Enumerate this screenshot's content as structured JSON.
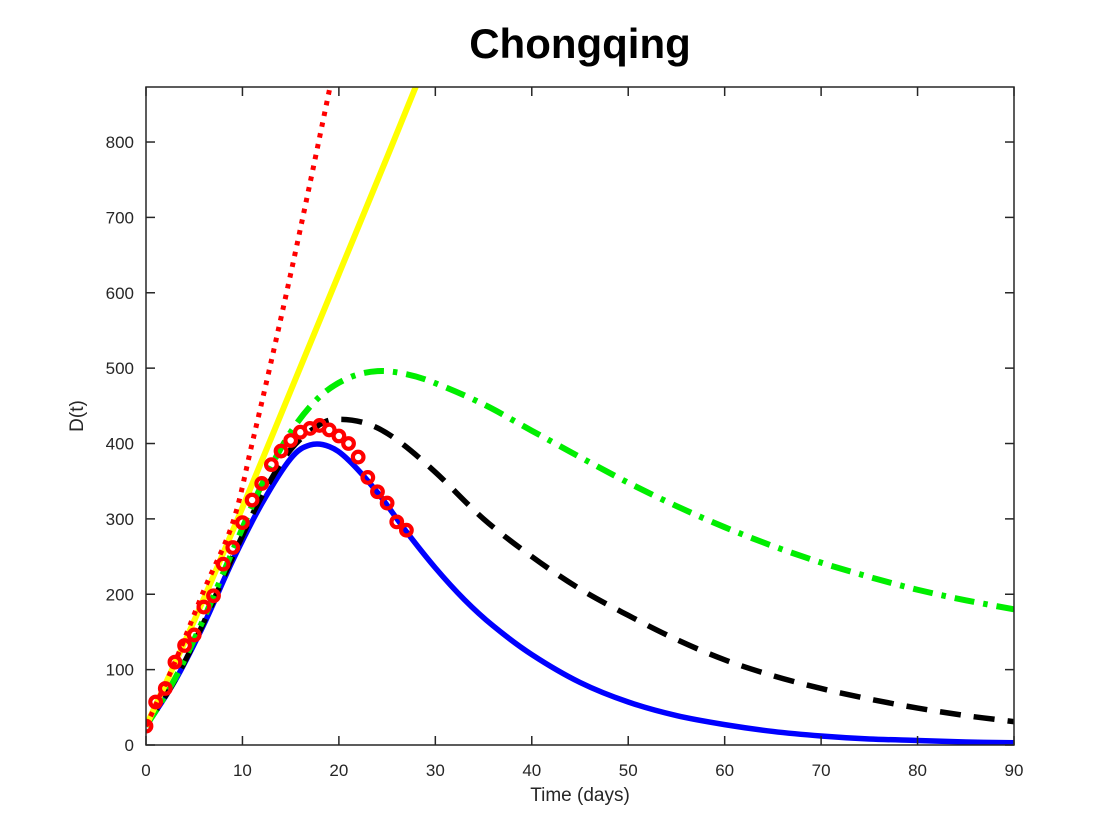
{
  "chart_data": {
    "type": "line",
    "title": "Chongqing",
    "xlabel": "Time (days)",
    "ylabel": "D(t)",
    "xlim": [
      0,
      90
    ],
    "ylim": [
      0,
      873
    ],
    "xticks": [
      0,
      10,
      20,
      30,
      40,
      50,
      60,
      70,
      80,
      90
    ],
    "yticks": [
      0,
      100,
      200,
      300,
      400,
      500,
      600,
      700,
      800
    ],
    "grid": false,
    "legend": "none",
    "background": "#ffffff",
    "axis_color": "#262626",
    "series": [
      {
        "name": "model-blue-solid",
        "type": "line",
        "style": "solid",
        "color": "#0000ff",
        "width": 5.5,
        "x": [
          0,
          3,
          6,
          9,
          12,
          15,
          17,
          19,
          21,
          24,
          27,
          30,
          33,
          36,
          40,
          45,
          50,
          55,
          60,
          65,
          70,
          75,
          80,
          85,
          90
        ],
        "y": [
          25,
          85,
          160,
          245,
          320,
          380,
          398,
          396,
          378,
          335,
          283,
          235,
          193,
          158,
          120,
          83,
          57,
          39,
          27,
          18,
          12,
          8,
          6,
          4,
          3
        ]
      },
      {
        "name": "model-black-dashed",
        "type": "line",
        "style": "dashed",
        "color": "#000000",
        "width": 5.5,
        "x": [
          0,
          3,
          6,
          9,
          12,
          15,
          18,
          20,
          23,
          26,
          30,
          35,
          40,
          45,
          50,
          55,
          60,
          65,
          70,
          75,
          80,
          85,
          90
        ],
        "y": [
          25,
          86,
          163,
          250,
          330,
          392,
          425,
          432,
          426,
          405,
          362,
          300,
          250,
          207,
          172,
          140,
          113,
          92,
          75,
          61,
          49,
          39,
          31
        ]
      },
      {
        "name": "model-green-dashdot",
        "type": "line",
        "style": "dashdot",
        "color": "#00ee00",
        "width": 6,
        "x": [
          0,
          3,
          6,
          9,
          12,
          15,
          18,
          21,
          24,
          27,
          30,
          35,
          40,
          45,
          50,
          55,
          60,
          65,
          70,
          75,
          80,
          85,
          90
        ],
        "y": [
          25,
          88,
          168,
          258,
          345,
          415,
          462,
          487,
          496,
          492,
          480,
          452,
          417,
          382,
          348,
          317,
          289,
          264,
          242,
          223,
          206,
          192,
          180
        ]
      },
      {
        "name": "model-yellow-linear",
        "type": "line",
        "style": "solid",
        "color": "#ffff00",
        "width": 6,
        "x": [
          0,
          5,
          10,
          15,
          20,
          25,
          28.5
        ],
        "y": [
          25,
          165,
          315,
          470,
          625,
          780,
          890
        ]
      },
      {
        "name": "model-red-dotted",
        "type": "line",
        "style": "dotted",
        "color": "#ff0000",
        "width": 5,
        "x": [
          0,
          3,
          6,
          9,
          11,
          13,
          15,
          17,
          19,
          19.6
        ],
        "y": [
          25,
          110,
          205,
          295,
          400,
          510,
          625,
          745,
          868,
          905
        ]
      },
      {
        "name": "observed-data-points",
        "type": "scatter",
        "marker": "open-circle",
        "color": "#ff0000",
        "marker_radius": 5.3,
        "marker_stroke": 4.2,
        "x": [
          0,
          1,
          2,
          3,
          4,
          5,
          6,
          7,
          8,
          9,
          10,
          11,
          12,
          13,
          14,
          15,
          16,
          17,
          18,
          19,
          20,
          21,
          22,
          23,
          24,
          25,
          26,
          27
        ],
        "y": [
          25,
          57,
          75,
          110,
          132,
          146,
          183,
          198,
          240,
          262,
          295,
          325,
          347,
          372,
          390,
          404,
          415,
          420,
          424,
          418,
          410,
          400,
          382,
          355,
          336,
          321,
          296,
          285
        ]
      }
    ]
  }
}
